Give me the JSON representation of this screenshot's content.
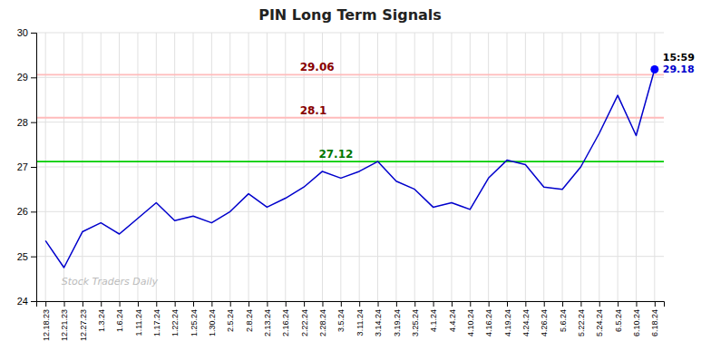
{
  "chart_data": {
    "type": "line",
    "title": "PIN Long Term Signals",
    "categories": [
      "12.18.23",
      "12.21.23",
      "12.27.23",
      "1.3.24",
      "1.6.24",
      "1.11.24",
      "1.17.24",
      "1.22.24",
      "1.25.24",
      "1.30.24",
      "2.5.24",
      "2.8.24",
      "2.13.24",
      "2.16.24",
      "2.22.24",
      "2.28.24",
      "3.5.24",
      "3.11.24",
      "3.14.24",
      "3.19.24",
      "3.25.24",
      "4.1.24",
      "4.4.24",
      "4.10.24",
      "4.16.24",
      "4.19.24",
      "4.24.24",
      "4.26.24",
      "5.6.24",
      "5.22.24",
      "5.24.24",
      "6.5.24",
      "6.10.24",
      "6.18.24"
    ],
    "values": [
      25.35,
      24.75,
      25.55,
      25.75,
      25.5,
      25.85,
      26.2,
      25.8,
      25.9,
      25.75,
      26.0,
      26.4,
      26.1,
      26.3,
      26.55,
      26.9,
      26.75,
      26.9,
      27.12,
      26.68,
      26.5,
      26.1,
      26.2,
      26.05,
      26.75,
      27.15,
      27.05,
      26.55,
      26.5,
      27.0,
      27.75,
      28.6,
      27.7,
      29.18
    ],
    "color": "#0000cc",
    "last_point_color": "#0000ff",
    "ylim": [
      24,
      30
    ],
    "yticks": [
      24,
      25,
      26,
      27,
      28,
      29,
      30
    ],
    "grid": true,
    "reference_lines": [
      {
        "value": 29.06,
        "label": "29.06",
        "color": "#ffbbbb",
        "label_color": "#880000"
      },
      {
        "value": 28.1,
        "label": "28.1",
        "color": "#ffbbbb",
        "label_color": "#880000"
      },
      {
        "value": 27.12,
        "label": "27.12",
        "color": "#00cc00",
        "label_color": "#007700"
      }
    ],
    "annotations": [
      {
        "text": "15:59",
        "color": "#000000"
      },
      {
        "text": "29.18",
        "color": "#0000cc"
      }
    ],
    "watermark": {
      "text": "Stock Traders Daily",
      "color": "#bbbbbb"
    }
  }
}
